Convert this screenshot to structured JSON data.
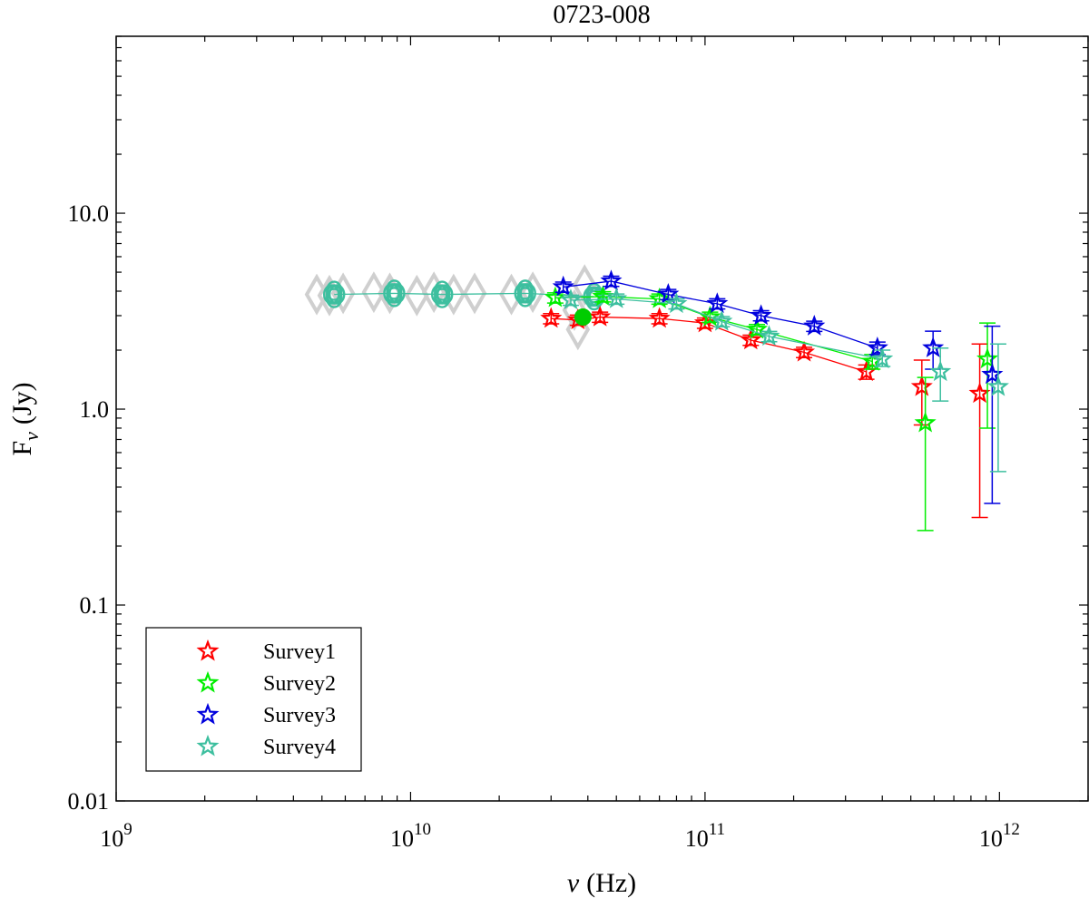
{
  "chart_data": {
    "type": "scatter",
    "title": "0723-008",
    "xlabel_symbol": "ν",
    "xlabel_unit": "(Hz)",
    "ylabel_symbol": "F",
    "ylabel_sub": "ν",
    "ylabel_unit": "(Jy)",
    "xscale": "log",
    "yscale": "log",
    "xlim": [
      1000000000.0,
      2000000000000.0
    ],
    "ylim": [
      0.01,
      80
    ],
    "xtick_labels": [
      {
        "base": "10",
        "exp": "9",
        "value": 1000000000.0
      },
      {
        "base": "10",
        "exp": "10",
        "value": 10000000000.0
      },
      {
        "base": "10",
        "exp": "11",
        "value": 100000000000.0
      },
      {
        "base": "10",
        "exp": "12",
        "value": 1000000000000.0
      }
    ],
    "ytick_labels": [
      {
        "label": "0.01",
        "value": 0.01
      },
      {
        "label": "0.1",
        "value": 0.1
      },
      {
        "label": "1.0",
        "value": 1.0
      },
      {
        "label": "10.0",
        "value": 10.0
      }
    ],
    "grid": false,
    "legend_position": "bottom-left",
    "series": [
      {
        "name": "Survey1",
        "color": "#ff0000",
        "points": [
          {
            "x": 30000000000.0,
            "y": 2.9
          },
          {
            "x": 37000000000.0,
            "y": 2.85
          },
          {
            "x": 44000000000.0,
            "y": 2.95
          },
          {
            "x": 70000000000.0,
            "y": 2.9
          },
          {
            "x": 100000000000.0,
            "y": 2.75
          },
          {
            "x": 143000000000.0,
            "y": 2.25
          },
          {
            "x": 217000000000.0,
            "y": 1.95
          },
          {
            "x": 353000000000.0,
            "y": 1.55,
            "err": [
              1.42,
              1.68
            ]
          },
          {
            "x": 545000000000.0,
            "y": 1.3,
            "err": [
              0.83,
              1.78
            ]
          },
          {
            "x": 857000000000.0,
            "y": 1.2,
            "err": [
              0.28,
              2.15
            ]
          }
        ]
      },
      {
        "name": "Survey2",
        "color": "#00ee00",
        "points": [
          {
            "x": 31000000000.0,
            "y": 3.7
          },
          {
            "x": 45000000000.0,
            "y": 3.75
          },
          {
            "x": 70000000000.0,
            "y": 3.65
          },
          {
            "x": 104000000000.0,
            "y": 2.95
          },
          {
            "x": 150000000000.0,
            "y": 2.55
          },
          {
            "x": 370000000000.0,
            "y": 1.75,
            "err": [
              1.6,
              1.9
            ]
          },
          {
            "x": 560000000000.0,
            "y": 0.85,
            "err": [
              0.24,
              1.45
            ]
          },
          {
            "x": 910000000000.0,
            "y": 1.8,
            "err": [
              0.8,
              2.75
            ]
          }
        ]
      },
      {
        "name": "Survey3",
        "color": "#0000dd",
        "points": [
          {
            "x": 33000000000.0,
            "y": 4.2
          },
          {
            "x": 48000000000.0,
            "y": 4.5
          },
          {
            "x": 75000000000.0,
            "y": 3.85
          },
          {
            "x": 110000000000.0,
            "y": 3.45
          },
          {
            "x": 155000000000.0,
            "y": 3.0
          },
          {
            "x": 235000000000.0,
            "y": 2.65
          },
          {
            "x": 385000000000.0,
            "y": 2.05,
            "err": [
              1.9,
              2.2
            ]
          },
          {
            "x": 595000000000.0,
            "y": 2.05,
            "err": [
              1.6,
              2.5
            ]
          },
          {
            "x": 945000000000.0,
            "y": 1.5,
            "err": [
              0.33,
              2.65
            ]
          }
        ]
      },
      {
        "name": "Survey4",
        "color": "#3dbf9f",
        "points": [
          {
            "x": 35000000000.0,
            "y": 3.6
          },
          {
            "x": 50000000000.0,
            "y": 3.65
          },
          {
            "x": 80000000000.0,
            "y": 3.45
          },
          {
            "x": 114000000000.0,
            "y": 2.8
          },
          {
            "x": 165000000000.0,
            "y": 2.35
          },
          {
            "x": 400000000000.0,
            "y": 1.8,
            "err": [
              1.65,
              2.0
            ]
          },
          {
            "x": 630000000000.0,
            "y": 1.55,
            "err": [
              1.1,
              2.05
            ]
          },
          {
            "x": 990000000000.0,
            "y": 1.3,
            "err": [
              0.48,
              2.15
            ]
          }
        ]
      }
    ],
    "circle_series": {
      "color": "#3dbf9f",
      "points": [
        {
          "x": 5500000000.0,
          "y": 3.85
        },
        {
          "x": 8800000000.0,
          "y": 3.9
        },
        {
          "x": 12800000000.0,
          "y": 3.85
        },
        {
          "x": 24500000000.0,
          "y": 3.9
        },
        {
          "x": 42000000000.0,
          "y": 3.75
        }
      ]
    },
    "green_dot": {
      "x": 38500000000.0,
      "y": 2.95,
      "color": "#00cc00"
    },
    "gray_diamonds": {
      "color": "#cfcfcf",
      "points": [
        {
          "x": 4800000000.0,
          "y": 3.85
        },
        {
          "x": 5300000000.0,
          "y": 3.8
        },
        {
          "x": 5900000000.0,
          "y": 3.9
        },
        {
          "x": 7500000000.0,
          "y": 3.95
        },
        {
          "x": 8500000000.0,
          "y": 3.9
        },
        {
          "x": 10500000000.0,
          "y": 3.8
        },
        {
          "x": 12000000000.0,
          "y": 3.95
        },
        {
          "x": 14000000000.0,
          "y": 3.85
        },
        {
          "x": 16500000000.0,
          "y": 3.9
        },
        {
          "x": 22000000000.0,
          "y": 3.85
        },
        {
          "x": 26000000000.0,
          "y": 3.95
        },
        {
          "x": 37000000000.0,
          "y": 2.55
        },
        {
          "x": 39000000000.0,
          "y": 4.3
        },
        {
          "x": 36000000000.0,
          "y": 3.2
        }
      ]
    }
  }
}
